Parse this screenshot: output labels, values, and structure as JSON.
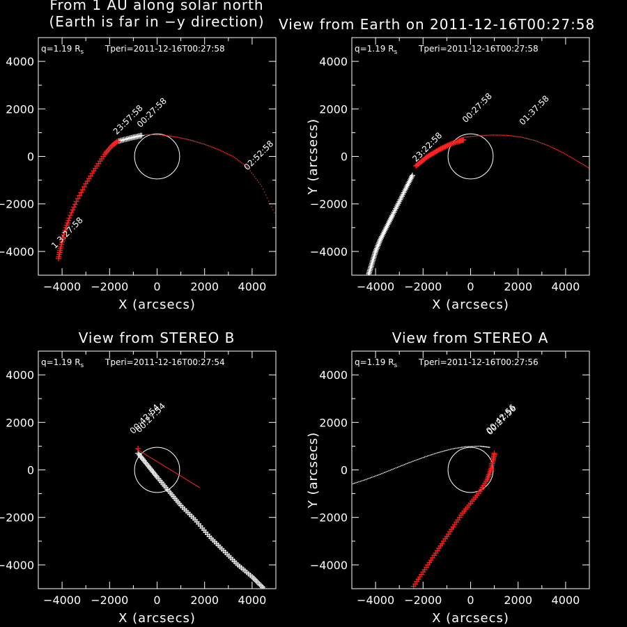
{
  "chart_data": [
    {
      "type": "scatter",
      "title_lines": [
        "From 1 AU along solar north",
        "(Earth is far in −y direction)"
      ],
      "xlabel": "X (arcsecs)",
      "ylabel": "",
      "annotation": {
        "q": "q=1.19 R",
        "q_sub": "s",
        "tperi": "Tperi=2011-12-16T00:27:58"
      },
      "xlim": [
        -5000,
        5000
      ],
      "ylim": [
        -5000,
        5000
      ],
      "xticks": [
        -4000,
        -2000,
        0,
        2000,
        4000
      ],
      "yticks": [
        -4000,
        -2000,
        0,
        2000,
        4000
      ],
      "sun_radius": 950,
      "orbit_points": [
        [
          -1000,
          830
        ],
        [
          -400,
          920
        ],
        [
          200,
          900
        ],
        [
          800,
          820
        ],
        [
          1400,
          690
        ],
        [
          2000,
          510
        ],
        [
          2600,
          280
        ],
        [
          3200,
          0
        ],
        [
          3800,
          -450
        ],
        [
          4400,
          -1250
        ],
        [
          5000,
          -2500
        ]
      ],
      "red_points": [
        [
          -4150,
          -4300
        ],
        [
          -4050,
          -3800
        ],
        [
          -3900,
          -3200
        ],
        [
          -3700,
          -2600
        ],
        [
          -3400,
          -1900
        ],
        [
          -3000,
          -1150
        ],
        [
          -2600,
          -500
        ],
        [
          -2200,
          100
        ],
        [
          -1900,
          450
        ],
        [
          -1650,
          650
        ]
      ],
      "white_points": [
        [
          -1600,
          650
        ],
        [
          -1100,
          780
        ],
        [
          -650,
          880
        ]
      ],
      "time_labels": [
        {
          "text": "1 3:27:58",
          "x": -4300,
          "y": -3900
        },
        {
          "text": "23:57:58",
          "x": -1700,
          "y": 900
        },
        {
          "text": "00:27:58",
          "x": -700,
          "y": 1200
        },
        {
          "text": "02:52:58",
          "x": 3800,
          "y": -600
        }
      ]
    },
    {
      "type": "scatter",
      "title_lines": [
        "View from Earth on 2011-12-16T00:27:58"
      ],
      "xlabel": "X (arcsecs)",
      "ylabel": "Y (arcsecs)",
      "annotation": {
        "q": "q=1.19 R",
        "q_sub": "s",
        "tperi": "Tperi=2011-12-16T00:27:58"
      },
      "xlim": [
        -5000,
        5000
      ],
      "ylim": [
        -5000,
        5000
      ],
      "xticks": [
        -4000,
        -2000,
        0,
        2000,
        4000
      ],
      "yticks": [
        -4000,
        -2000,
        0,
        2000,
        4000
      ],
      "sun_radius": 950,
      "orbit_points": [
        [
          -300,
          800
        ],
        [
          300,
          870
        ],
        [
          900,
          900
        ],
        [
          1500,
          890
        ],
        [
          2100,
          820
        ],
        [
          2700,
          670
        ],
        [
          3300,
          440
        ],
        [
          3900,
          150
        ],
        [
          4500,
          -200
        ],
        [
          5000,
          -500
        ]
      ],
      "red_points": [
        [
          -2300,
          -400
        ],
        [
          -2050,
          -200
        ],
        [
          -1800,
          0
        ],
        [
          -1550,
          150
        ],
        [
          -1300,
          300
        ],
        [
          -1050,
          420
        ],
        [
          -800,
          530
        ],
        [
          -500,
          640
        ],
        [
          -300,
          700
        ]
      ],
      "white_points": [
        [
          -4300,
          -5000
        ],
        [
          -4150,
          -4500
        ],
        [
          -4000,
          -4000
        ],
        [
          -3800,
          -3500
        ],
        [
          -3550,
          -3000
        ],
        [
          -3300,
          -2500
        ],
        [
          -3000,
          -1900
        ],
        [
          -2700,
          -1300
        ],
        [
          -2450,
          -800
        ]
      ],
      "time_labels": [
        {
          "text": "23:22:58",
          "x": -2300,
          "y": -250
        },
        {
          "text": "00:27:58",
          "x": -200,
          "y": 1400
        },
        {
          "text": "01:37:58",
          "x": 2200,
          "y": 1300
        }
      ]
    },
    {
      "type": "scatter",
      "title_lines": [
        "View from STEREO B"
      ],
      "xlabel": "X (arcsecs)",
      "ylabel": "",
      "annotation": {
        "q": "q=1.19 R",
        "q_sub": "s",
        "tperi": "Tperi=2011-12-16T00:27:54"
      },
      "xlim": [
        -5000,
        5000
      ],
      "ylim": [
        -5000,
        5000
      ],
      "xticks": [
        -4000,
        -2000,
        0,
        2000,
        4000
      ],
      "yticks": [
        -4000,
        -2000,
        0,
        2000,
        4000
      ],
      "sun_radius": 950,
      "orbit_points": [],
      "red_line": [
        [
          -900,
          900
        ],
        [
          1800,
          -750
        ]
      ],
      "red_points": [
        [
          -800,
          900
        ]
      ],
      "white_points": [
        [
          -800,
          700
        ],
        [
          -400,
          200
        ],
        [
          0,
          -300
        ],
        [
          500,
          -900
        ],
        [
          1000,
          -1500
        ],
        [
          1600,
          -2100
        ],
        [
          2200,
          -2800
        ],
        [
          2800,
          -3400
        ],
        [
          3400,
          -4000
        ],
        [
          4000,
          -4500
        ],
        [
          4500,
          -5000
        ]
      ],
      "time_labels": [
        {
          "text": "00:42:54",
          "x": -1000,
          "y": 1500
        },
        {
          "text": "00:27:54",
          "x": -750,
          "y": 1550
        }
      ]
    },
    {
      "type": "scatter",
      "title_lines": [
        "View from STEREO A"
      ],
      "xlabel": "X (arcsecs)",
      "ylabel": "Y (arcsecs)",
      "annotation": {
        "q": "q=1.19 R",
        "q_sub": "s",
        "tperi": "Tperi=2011-12-16T00:27:56"
      },
      "xlim": [
        -5000,
        5000
      ],
      "ylim": [
        -5000,
        5000
      ],
      "xticks": [
        -4000,
        -2000,
        0,
        2000,
        4000
      ],
      "yticks": [
        -4000,
        -2000,
        0,
        2000,
        4000
      ],
      "sun_radius": 950,
      "orbit_points": [
        [
          -5000,
          -600
        ],
        [
          -4400,
          -400
        ],
        [
          -3800,
          -180
        ],
        [
          -3200,
          60
        ],
        [
          -2600,
          300
        ],
        [
          -2000,
          520
        ],
        [
          -1400,
          720
        ],
        [
          -800,
          880
        ],
        [
          -200,
          980
        ],
        [
          400,
          1000
        ],
        [
          800,
          950
        ]
      ],
      "red_points": [
        [
          -2400,
          -4900
        ],
        [
          -2000,
          -4300
        ],
        [
          -1600,
          -3700
        ],
        [
          -1200,
          -3100
        ],
        [
          -800,
          -2500
        ],
        [
          -400,
          -1900
        ],
        [
          0,
          -1400
        ],
        [
          400,
          -900
        ],
        [
          700,
          -400
        ],
        [
          850,
          0
        ],
        [
          950,
          400
        ],
        [
          1000,
          700
        ]
      ],
      "white_points": [],
      "time_labels": [
        {
          "text": "00:42:56",
          "x": 800,
          "y": 1500
        },
        {
          "text": "00:27:56",
          "x": 820,
          "y": 1450
        }
      ]
    }
  ]
}
